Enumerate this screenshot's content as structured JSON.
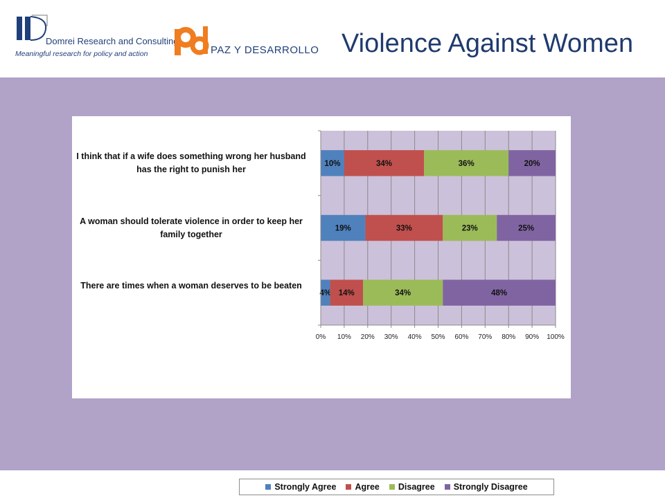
{
  "header": {
    "logo1_name": "Domrei Research and Consulting",
    "logo1_tagline": "Meaningful research for policy and action",
    "logo2_name": "PAZ Y DESARROLLO",
    "title": "Violence Against Women"
  },
  "colors": {
    "band": "#b1a2c8",
    "plot_bg": "#ccc1da",
    "strongly_agree": "#4f81bd",
    "agree": "#c0504d",
    "disagree": "#9bbb59",
    "strongly_disagree": "#8064a2"
  },
  "chart_data": {
    "type": "bar",
    "orientation": "horizontal",
    "stacked": true,
    "categories": [
      "There are times when a woman deserves to be beaten",
      "A woman should tolerate violence in order to keep her family together",
      "I think that if a wife does something wrong her husband has the right to punish her"
    ],
    "series": [
      {
        "name": "Strongly Agree",
        "values": [
          4,
          19,
          10
        ],
        "labels": [
          "4%",
          "19%",
          "10%"
        ]
      },
      {
        "name": "Agree",
        "values": [
          14,
          33,
          34
        ],
        "labels": [
          "14%",
          "33%",
          "34%"
        ]
      },
      {
        "name": "Disagree",
        "values": [
          34,
          23,
          36
        ],
        "labels": [
          "34%",
          "23%",
          "36%"
        ]
      },
      {
        "name": "Strongly Disagree",
        "values": [
          48,
          25,
          20
        ],
        "labels": [
          "48%",
          "25%",
          "20%"
        ]
      }
    ],
    "xlim": [
      0,
      100
    ],
    "x_ticks": [
      "0%",
      "10%",
      "20%",
      "30%",
      "40%",
      "50%",
      "60%",
      "70%",
      "80%",
      "90%",
      "100%"
    ],
    "grid": true,
    "legend": "bottom"
  }
}
